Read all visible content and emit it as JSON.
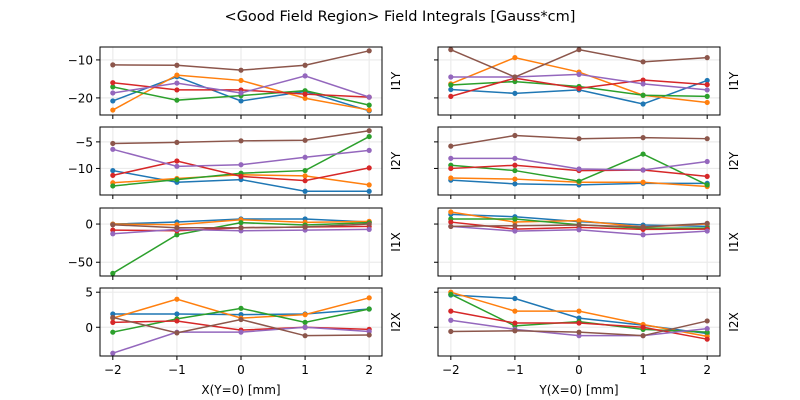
{
  "chart_data": {
    "type": "line",
    "title": "<Good Field Region> Field Integrals [Gauss*cm]",
    "x": [
      -2,
      -1,
      0,
      1,
      2
    ],
    "x_tick_labels": [
      "−2",
      "−1",
      "0",
      "1",
      "2"
    ],
    "series_colors": [
      "#1f77b4",
      "#ff7f0e",
      "#2ca02c",
      "#d62728",
      "#9467bd",
      "#8c564b"
    ],
    "grid": true,
    "legend": "none",
    "columns": [
      {
        "xlabel": "X(Y=0) [mm]"
      },
      {
        "xlabel": "Y(X=0) [mm]"
      }
    ],
    "rows": [
      {
        "label": "I1Y",
        "ylim": [
          -24.5,
          -6.6
        ],
        "yticks": [
          -10,
          -20
        ],
        "ytick_labels": [
          "−10",
          "−20"
        ],
        "left": {
          "series": [
            {
              "name": "blue",
              "values": [
                -20.8,
                -14.4,
                -20.8,
                -18.3,
                -23.4
              ]
            },
            {
              "name": "orange",
              "values": [
                -23.2,
                -14.0,
                -15.4,
                -20.1,
                -23.2
              ]
            },
            {
              "name": "green",
              "values": [
                -17.1,
                -20.6,
                -19.4,
                -18.1,
                -21.9
              ]
            },
            {
              "name": "red",
              "values": [
                -16.0,
                -17.9,
                -17.9,
                -19.0,
                -19.8
              ]
            },
            {
              "name": "purple",
              "values": [
                -18.7,
                -16.1,
                -18.7,
                -14.2,
                -19.8
              ]
            },
            {
              "name": "brown",
              "values": [
                -11.3,
                -11.4,
                -12.7,
                -11.4,
                -7.6
              ]
            }
          ]
        },
        "right": {
          "series": [
            {
              "name": "blue",
              "values": [
                -17.8,
                -18.8,
                -17.9,
                -21.6,
                -15.4
              ]
            },
            {
              "name": "orange",
              "values": [
                -16.3,
                -9.4,
                -13.2,
                -19.3,
                -21.2
              ]
            },
            {
              "name": "green",
              "values": [
                -16.6,
                -15.7,
                -17.0,
                -19.3,
                -19.6
              ]
            },
            {
              "name": "red",
              "values": [
                -19.6,
                -14.8,
                -17.5,
                -15.3,
                -16.5
              ]
            },
            {
              "name": "purple",
              "values": [
                -14.5,
                -14.5,
                -13.8,
                -16.3,
                -17.9
              ]
            },
            {
              "name": "brown",
              "values": [
                -7.3,
                -14.5,
                -7.3,
                -10.5,
                -9.4
              ]
            }
          ]
        }
      },
      {
        "label": "I2Y",
        "ylim": [
          -15.0,
          -2.2
        ],
        "yticks": [
          -5,
          -10
        ],
        "ytick_labels": [
          "−5",
          "−10"
        ],
        "left": {
          "series": [
            {
              "name": "blue",
              "values": [
                -10.4,
                -12.6,
                -12.1,
                -14.3,
                -14.3
              ]
            },
            {
              "name": "orange",
              "values": [
                -12.7,
                -11.9,
                -11.2,
                -11.4,
                -13.1
              ]
            },
            {
              "name": "green",
              "values": [
                -13.3,
                -12.1,
                -10.9,
                -10.4,
                -4.0
              ]
            },
            {
              "name": "red",
              "values": [
                -11.3,
                -8.6,
                -11.5,
                -12.3,
                -9.9
              ]
            },
            {
              "name": "purple",
              "values": [
                -6.4,
                -9.6,
                -9.3,
                -7.9,
                -6.6
              ]
            },
            {
              "name": "brown",
              "values": [
                -5.3,
                -5.1,
                -4.8,
                -4.7,
                -2.9
              ]
            }
          ]
        },
        "right": {
          "series": [
            {
              "name": "blue",
              "values": [
                -12.2,
                -12.9,
                -13.1,
                -12.8,
                -12.8
              ]
            },
            {
              "name": "orange",
              "values": [
                -11.8,
                -12.0,
                -12.6,
                -12.6,
                -13.4
              ]
            },
            {
              "name": "green",
              "values": [
                -9.4,
                -10.4,
                -12.4,
                -7.3,
                -13.1
              ]
            },
            {
              "name": "red",
              "values": [
                -10.0,
                -9.4,
                -10.4,
                -10.3,
                -11.5
              ]
            },
            {
              "name": "purple",
              "values": [
                -8.1,
                -8.1,
                -10.1,
                -10.3,
                -8.7
              ]
            },
            {
              "name": "brown",
              "values": [
                -5.8,
                -3.8,
                -4.4,
                -4.2,
                -4.4
              ]
            }
          ]
        }
      },
      {
        "label": "I1X",
        "ylim": [
          -68,
          21
        ],
        "yticks": [
          0,
          -50
        ],
        "ytick_labels": [
          "0",
          "−50"
        ],
        "left": {
          "series": [
            {
              "name": "blue",
              "values": [
                0,
                2.6,
                6.6,
                6.6,
                2.6
              ]
            },
            {
              "name": "orange",
              "values": [
                0,
                -0.9,
                5.7,
                2.2,
                3.5
              ]
            },
            {
              "name": "green",
              "values": [
                -64.5,
                -14.0,
                1.8,
                -1.3,
                1.8
              ]
            },
            {
              "name": "red",
              "values": [
                -7.9,
                -8.8,
                -4.8,
                -3.9,
                -3.1
              ]
            },
            {
              "name": "purple",
              "values": [
                -12.7,
                -7.0,
                -8.8,
                -7.9,
                -7.0
              ]
            },
            {
              "name": "brown",
              "values": [
                -0.9,
                -4.8,
                -4.8,
                -3.9,
                0
              ]
            }
          ]
        },
        "right": {
          "series": [
            {
              "name": "blue",
              "values": [
                12.7,
                9.6,
                3.1,
                -1.3,
                -3.1
              ]
            },
            {
              "name": "orange",
              "values": [
                15.8,
                2.6,
                4.4,
                -3.9,
                0
              ]
            },
            {
              "name": "green",
              "values": [
                6.6,
                6.6,
                -0.9,
                -5.3,
                -5.3
              ]
            },
            {
              "name": "red",
              "values": [
                2.6,
                -6.6,
                -4.4,
                -7.0,
                -6.6
              ]
            },
            {
              "name": "purple",
              "values": [
                -3.1,
                -9.2,
                -7.5,
                -14.0,
                -9.2
              ]
            },
            {
              "name": "brown",
              "values": [
                -3.1,
                -2.2,
                -1.3,
                -3.9,
                0.9
              ]
            }
          ]
        }
      },
      {
        "label": "I2X",
        "ylim": [
          -4.1,
          5.6
        ],
        "yticks": [
          5,
          0
        ],
        "ytick_labels": [
          "5",
          "0"
        ],
        "left": {
          "series": [
            {
              "name": "blue",
              "values": [
                1.9,
                1.9,
                1.8,
                1.9,
                2.6
              ]
            },
            {
              "name": "orange",
              "values": [
                1.3,
                4.0,
                1.3,
                1.8,
                4.2
              ]
            },
            {
              "name": "green",
              "values": [
                -0.7,
                1.2,
                2.7,
                0.7,
                2.6
              ]
            },
            {
              "name": "red",
              "values": [
                0.7,
                0.9,
                -0.4,
                0,
                -0.3
              ]
            },
            {
              "name": "purple",
              "values": [
                -3.7,
                -0.7,
                -0.7,
                0,
                -0.6
              ]
            },
            {
              "name": "brown",
              "values": [
                1.4,
                -0.8,
                1.1,
                -1.2,
                -1.1
              ]
            }
          ]
        },
        "right": {
          "series": [
            {
              "name": "blue",
              "values": [
                4.6,
                4.1,
                1.3,
                0.3,
                -0.9
              ]
            },
            {
              "name": "orange",
              "values": [
                5.0,
                2.3,
                2.3,
                0.4,
                -1.3
              ]
            },
            {
              "name": "green",
              "values": [
                4.7,
                0.2,
                0.8,
                -0.3,
                -0.7
              ]
            },
            {
              "name": "red",
              "values": [
                2.3,
                0.6,
                0.6,
                0,
                -1.7
              ]
            },
            {
              "name": "purple",
              "values": [
                1.0,
                -0.3,
                -1.2,
                -1.2,
                -0.2
              ]
            },
            {
              "name": "brown",
              "values": [
                -0.6,
                -0.5,
                -0.7,
                -1.2,
                0.9
              ]
            }
          ]
        }
      }
    ]
  }
}
